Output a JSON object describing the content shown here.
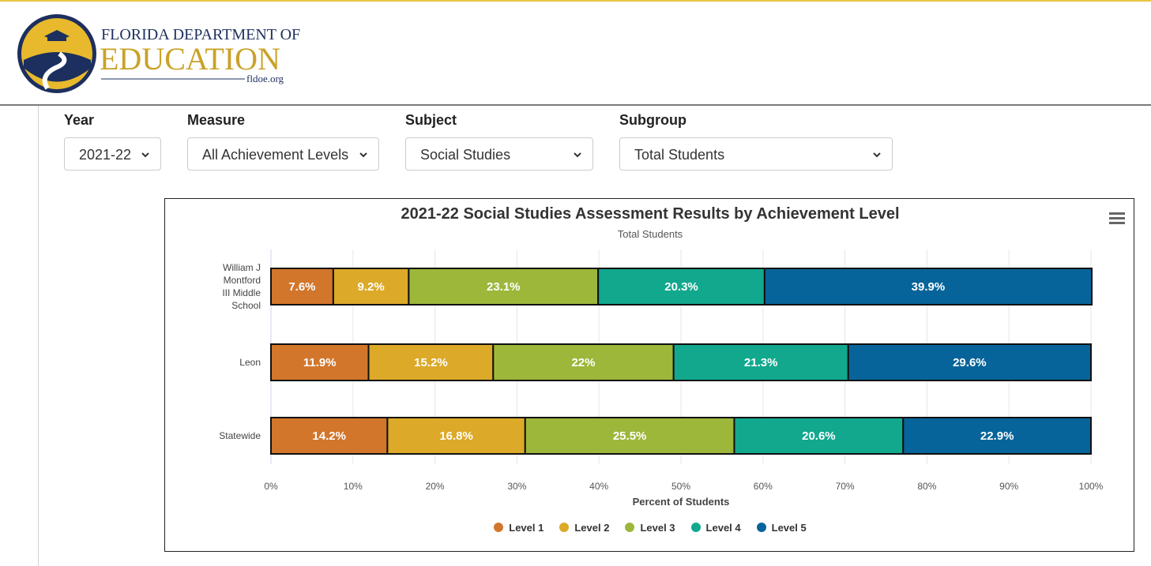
{
  "header": {
    "logo_line1": "FLORIDA DEPARTMENT OF",
    "logo_line2": "EDUCATION",
    "logo_url": "fldoe.org"
  },
  "filters": [
    {
      "label": "Year",
      "value": "2021-22"
    },
    {
      "label": "Measure",
      "value": "All Achievement Levels"
    },
    {
      "label": "Subject",
      "value": "Social Studies"
    },
    {
      "label": "Subgroup",
      "value": "Total Students"
    }
  ],
  "colors": {
    "level1": "#d2762b",
    "level2": "#dca928",
    "level3": "#9db73b",
    "level4": "#11a88e",
    "level5": "#07649a"
  },
  "chart_data": {
    "type": "bar",
    "orientation": "horizontal",
    "stacked": true,
    "title": "2021-22 Social Studies Assessment Results by Achievement Level",
    "subtitle": "Total Students",
    "categories": [
      "William J Montford III Middle School",
      "Leon",
      "Statewide"
    ],
    "category_label_lines": [
      "William J\nMontford\nIII Middle\nSchool",
      "Leon",
      "Statewide"
    ],
    "series": [
      {
        "name": "Level 1",
        "values": [
          7.6,
          11.9,
          14.2
        ],
        "labels": [
          "7.6%",
          "11.9%",
          "14.2%"
        ]
      },
      {
        "name": "Level 2",
        "values": [
          9.2,
          15.2,
          16.8
        ],
        "labels": [
          "9.2%",
          "15.2%",
          "16.8%"
        ]
      },
      {
        "name": "Level 3",
        "values": [
          23.1,
          22,
          25.5
        ],
        "labels": [
          "23.1%",
          "22%",
          "25.5%"
        ]
      },
      {
        "name": "Level 4",
        "values": [
          20.3,
          21.3,
          20.6
        ],
        "labels": [
          "20.3%",
          "21.3%",
          "20.6%"
        ]
      },
      {
        "name": "Level 5",
        "values": [
          39.9,
          29.6,
          22.9
        ],
        "labels": [
          "39.9%",
          "29.6%",
          "22.9%"
        ]
      }
    ],
    "xlabel": "Percent of Students",
    "xlim": [
      0,
      100
    ],
    "x_ticks": [
      "0%",
      "10%",
      "20%",
      "30%",
      "40%",
      "50%",
      "60%",
      "70%",
      "80%",
      "90%",
      "100%"
    ],
    "grid": true,
    "legend_position": "bottom"
  }
}
